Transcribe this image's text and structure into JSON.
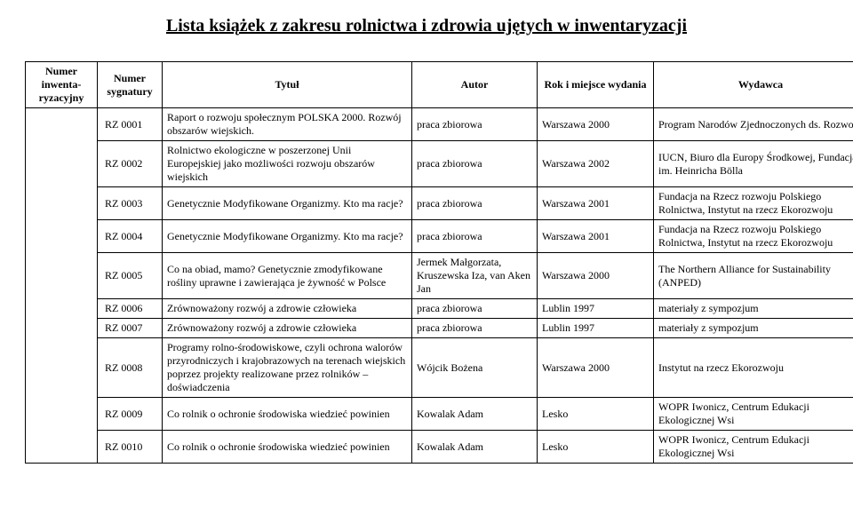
{
  "title": "Lista książek z zakresu rolnictwa i zdrowia ujętych w inwentaryzacji",
  "columns": {
    "c0": "Numer inwenta-ryzacyjny",
    "c1": "Numer sygnatury",
    "c2": "Tytuł",
    "c3": "Autor",
    "c4": "Rok i miejsce wydania",
    "c5": "Wydawca"
  },
  "rows": [
    {
      "syg": "RZ 0001",
      "tytul": "Raport o rozwoju społecznym POLSKA 2000. Rozwój obszarów wiejskich.",
      "autor": "praca zbiorowa",
      "rok": "Warszawa 2000",
      "wyd": "Program Narodów Zjednoczonych ds. Rozwoju"
    },
    {
      "syg": "RZ 0002",
      "tytul": "Rolnictwo ekologiczne w poszerzonej Unii Europejskiej jako możliwości rozwoju obszarów wiejskich",
      "autor": "praca zbiorowa",
      "rok": "Warszawa 2002",
      "wyd": "IUCN, Biuro dla Europy Środkowej, Fundacja im. Heinricha Bölla"
    },
    {
      "syg": "RZ 0003",
      "tytul": "Genetycznie Modyfikowane Organizmy. Kto ma racje?",
      "autor": "praca zbiorowa",
      "rok": "Warszawa 2001",
      "wyd": "Fundacja na Rzecz rozwoju Polskiego Rolnictwa, Instytut na rzecz Ekorozwoju"
    },
    {
      "syg": "RZ 0004",
      "tytul": "Genetycznie Modyfikowane Organizmy. Kto ma racje?",
      "autor": "praca zbiorowa",
      "rok": "Warszawa 2001",
      "wyd": "Fundacja na Rzecz rozwoju Polskiego Rolnictwa, Instytut na rzecz Ekorozwoju"
    },
    {
      "syg": "RZ 0005",
      "tytul": "Co na obiad, mamo? Genetycznie zmodyfikowane rośliny uprawne i zawierająca je żywność w Polsce",
      "autor": "Jermek Małgorzata, Kruszewska Iza, van Aken Jan",
      "rok": "Warszawa 2000",
      "wyd": "The Northern Alliance for Sustainability (ANPED)"
    },
    {
      "syg": "RZ 0006",
      "tytul": "Zrównoważony rozwój a zdrowie człowieka",
      "autor": "praca zbiorowa",
      "rok": "Lublin 1997",
      "wyd": "materiały z sympozjum"
    },
    {
      "syg": "RZ 0007",
      "tytul": "Zrównoważony rozwój a zdrowie człowieka",
      "autor": "praca zbiorowa",
      "rok": "Lublin 1997",
      "wyd": "materiały z sympozjum"
    },
    {
      "syg": "RZ 0008",
      "tytul": "Programy rolno-środowiskowe, czyli ochrona walorów przyrodniczych i krajobrazowych na terenach wiejskich poprzez projekty realizowane przez rolników – doświadczenia",
      "autor": "Wójcik Bożena",
      "rok": "Warszawa 2000",
      "wyd": "Instytut na rzecz Ekorozwoju"
    },
    {
      "syg": "RZ 0009",
      "tytul": "Co rolnik o ochronie środowiska wiedzieć powinien",
      "autor": "Kowalak Adam",
      "rok": "Lesko",
      "wyd": "WOPR Iwonicz, Centrum Edukacji Ekologicznej Wsi"
    },
    {
      "syg": "RZ 0010",
      "tytul": "Co rolnik o ochronie środowiska wiedzieć powinien",
      "autor": "Kowalak Adam",
      "rok": "Lesko",
      "wyd": "WOPR Iwonicz, Centrum Edukacji Ekologicznej Wsi"
    }
  ]
}
